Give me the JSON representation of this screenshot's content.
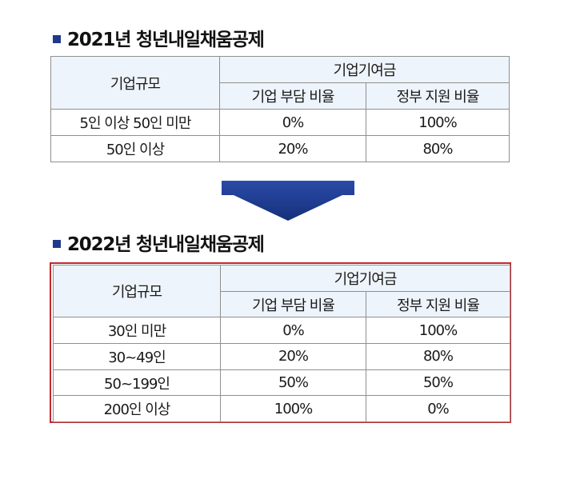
{
  "section_2021": {
    "title": "2021년 청년내일채움공제",
    "header": {
      "size_label": "기업규모",
      "contribution_label": "기업기여금",
      "company_share_label": "기업 부담 비율",
      "gov_support_label": "정부 지원 비율"
    },
    "rows": [
      {
        "size": "5인 이상 50인 미만",
        "company": "0%",
        "gov": "100%"
      },
      {
        "size": "50인 이상",
        "company": "20%",
        "gov": "80%"
      }
    ]
  },
  "section_2022": {
    "title": "2022년 청년내일채움공제",
    "header": {
      "size_label": "기업규모",
      "contribution_label": "기업기여금",
      "company_share_label": "기업 부담 비율",
      "gov_support_label": "정부 지원 비율"
    },
    "rows": [
      {
        "size": "30인 미만",
        "company": "0%",
        "gov": "100%"
      },
      {
        "size": "30~49인",
        "company": "20%",
        "gov": "80%"
      },
      {
        "size": "50~199인",
        "company": "50%",
        "gov": "50%"
      },
      {
        "size": "200인 이상",
        "company": "100%",
        "gov": "0%"
      }
    ]
  },
  "colors": {
    "bullet": "#1f3a8a",
    "header_bg": "#eef4fb",
    "highlight_border": "#c0292f",
    "arrow_fill": "#1f3a8a"
  },
  "icons": {
    "transition": "down-arrow-icon"
  }
}
